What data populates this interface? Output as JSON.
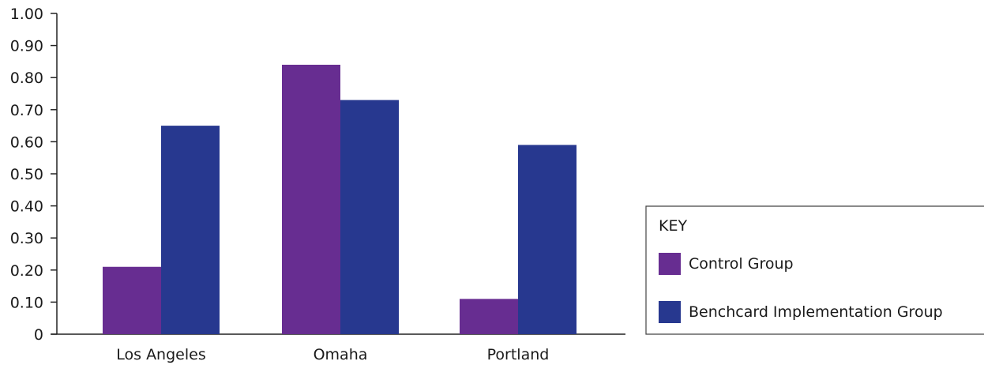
{
  "chart_data": {
    "type": "bar",
    "categories": [
      "Los Angeles",
      "Omaha",
      "Portland"
    ],
    "series": [
      {
        "name": "Control Group",
        "values": [
          0.21,
          0.84,
          0.11
        ],
        "color": "#672d91"
      },
      {
        "name": "Benchcard Implementation Group",
        "values": [
          0.65,
          0.73,
          0.59
        ],
        "color": "#27388f"
      }
    ],
    "ylim": [
      0,
      1.0
    ],
    "yticks": [
      "0",
      "0.10",
      "0.20",
      "0.30",
      "0.40",
      "0.50",
      "0.60",
      "0.70",
      "0.80",
      "0.90",
      "1.00"
    ],
    "legend": {
      "title": "KEY",
      "position": "right"
    },
    "grid": false
  }
}
